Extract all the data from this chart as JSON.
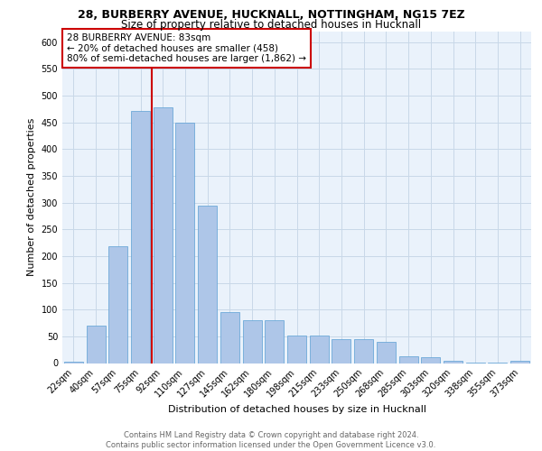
{
  "title1": "28, BURBERRY AVENUE, HUCKNALL, NOTTINGHAM, NG15 7EZ",
  "title2": "Size of property relative to detached houses in Hucknall",
  "xlabel": "Distribution of detached houses by size in Hucknall",
  "ylabel": "Number of detached properties",
  "categories": [
    "22sqm",
    "40sqm",
    "57sqm",
    "75sqm",
    "92sqm",
    "110sqm",
    "127sqm",
    "145sqm",
    "162sqm",
    "180sqm",
    "198sqm",
    "215sqm",
    "233sqm",
    "250sqm",
    "268sqm",
    "285sqm",
    "303sqm",
    "320sqm",
    "338sqm",
    "355sqm",
    "373sqm"
  ],
  "values": [
    2,
    70,
    218,
    472,
    478,
    450,
    295,
    95,
    80,
    80,
    52,
    52,
    45,
    45,
    40,
    12,
    11,
    4,
    1,
    1,
    5
  ],
  "bar_color": "#aec6e8",
  "bar_edge_color": "#5a9fd4",
  "property_line_color": "#cc0000",
  "annotation_text": "28 BURBERRY AVENUE: 83sqm\n← 20% of detached houses are smaller (458)\n80% of semi-detached houses are larger (1,862) →",
  "annotation_box_color": "#cc0000",
  "ylim": [
    0,
    620
  ],
  "yticks": [
    0,
    50,
    100,
    150,
    200,
    250,
    300,
    350,
    400,
    450,
    500,
    550,
    600
  ],
  "grid_color": "#c8d8e8",
  "background_color": "#eaf2fb",
  "footnote": "Contains HM Land Registry data © Crown copyright and database right 2024.\nContains public sector information licensed under the Open Government Licence v3.0.",
  "title1_fontsize": 9,
  "title2_fontsize": 8.5,
  "xlabel_fontsize": 8,
  "ylabel_fontsize": 8,
  "tick_fontsize": 7,
  "annot_fontsize": 7.5,
  "footnote_fontsize": 6
}
